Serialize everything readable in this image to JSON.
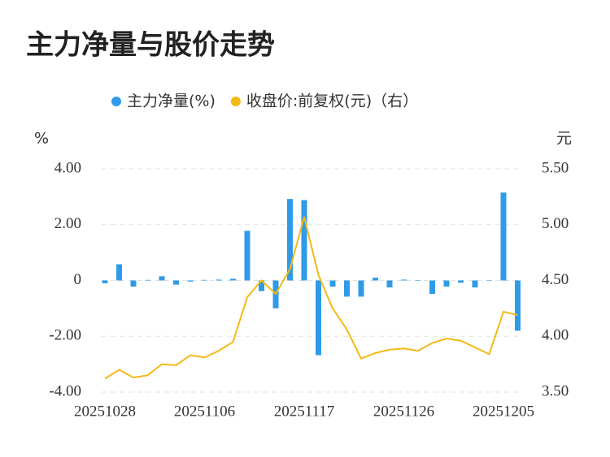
{
  "chart_data": {
    "type": "bar_line",
    "title": "主力净量与股价走势",
    "y_label": "%",
    "y2_label": "元",
    "categories": [
      "20251028",
      null,
      null,
      null,
      null,
      null,
      null,
      "20251106",
      null,
      null,
      null,
      null,
      null,
      null,
      "20251117",
      null,
      null,
      null,
      null,
      null,
      null,
      "20251126",
      null,
      null,
      null,
      null,
      null,
      null,
      "20251205",
      null
    ],
    "series": [
      {
        "name": "主力净量(%)",
        "type": "bar",
        "color": "#2f9be8",
        "values": [
          -0.1,
          0.58,
          -0.22,
          0.02,
          0.15,
          -0.15,
          -0.04,
          0.02,
          0.03,
          0.06,
          1.78,
          -0.38,
          -1.0,
          2.92,
          2.88,
          -2.68,
          -0.22,
          -0.58,
          -0.58,
          0.1,
          -0.25,
          0.03,
          0.0,
          -0.48,
          -0.22,
          -0.08,
          -0.25,
          0.0,
          3.15,
          -1.8
        ]
      },
      {
        "name": "收盘价:前复权(元)（右）",
        "type": "line",
        "axis": "y2",
        "color": "#f5b915",
        "values": [
          3.62,
          3.7,
          3.63,
          3.65,
          3.75,
          3.74,
          3.83,
          3.81,
          3.87,
          3.95,
          4.35,
          4.5,
          4.38,
          4.6,
          5.07,
          4.55,
          4.25,
          4.06,
          3.8,
          3.85,
          3.88,
          3.89,
          3.87,
          3.94,
          3.98,
          3.96,
          3.9,
          3.84,
          4.22,
          4.19
        ]
      }
    ],
    "ylim": [
      -4,
      4
    ],
    "yticks": [
      {
        "value": 4,
        "label": "4.00"
      },
      {
        "value": 2,
        "label": "2.00"
      },
      0,
      {
        "value": -2,
        "label": "-2.00"
      },
      {
        "value": -4,
        "label": "-4.00"
      }
    ],
    "y2lim": [
      3.5,
      5.5
    ],
    "y2ticks": [
      {
        "value": 5.5,
        "label": "5.50"
      },
      {
        "value": 5,
        "label": "5.00"
      },
      {
        "value": 4.5,
        "label": "4.50"
      },
      {
        "value": 4,
        "label": "4.00"
      },
      {
        "value": 3.5,
        "label": "3.50"
      }
    ],
    "grid": true
  }
}
